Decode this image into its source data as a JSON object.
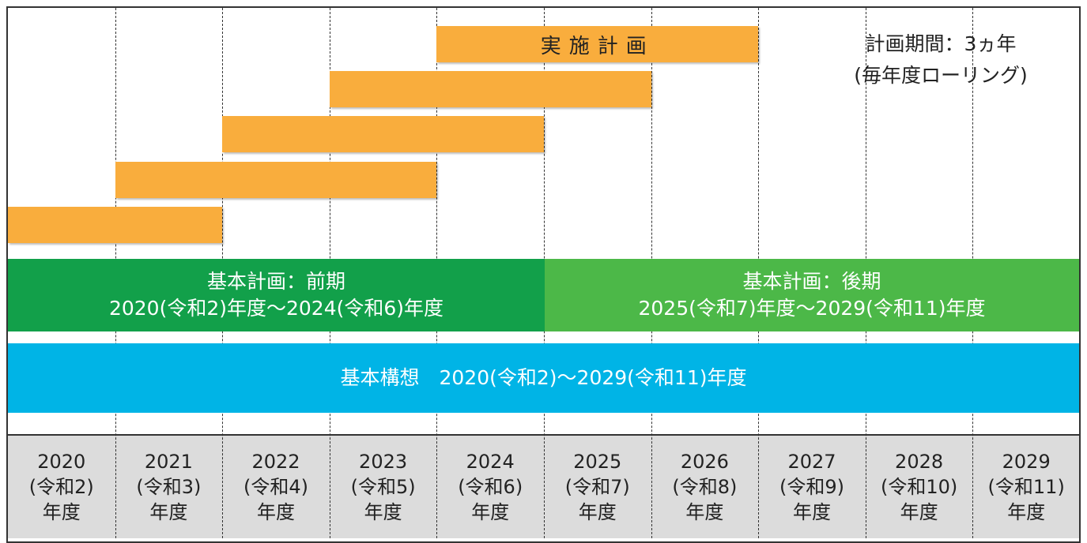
{
  "plan_label": "実施計画",
  "note": [
    "計画期間：3ヵ年",
    "(毎年度ローリング)"
  ],
  "basic_plan": [
    {
      "title": "基本計画：前期",
      "period": "2020(令和2)年度～2024(令和6)年度"
    },
    {
      "title": "基本計画：後期",
      "period": "2025(令和7)年度～2029(令和11)年度"
    }
  ],
  "concept": "基本構想　2020(令和2)～2029(令和11)年度",
  "years": [
    {
      "year": "2020",
      "era": "(令和2)",
      "unit": "年度"
    },
    {
      "year": "2021",
      "era": "(令和3)",
      "unit": "年度"
    },
    {
      "year": "2022",
      "era": "(令和4)",
      "unit": "年度"
    },
    {
      "year": "2023",
      "era": "(令和5)",
      "unit": "年度"
    },
    {
      "year": "2024",
      "era": "(令和6)",
      "unit": "年度"
    },
    {
      "year": "2025",
      "era": "(令和7)",
      "unit": "年度"
    },
    {
      "year": "2026",
      "era": "(令和8)",
      "unit": "年度"
    },
    {
      "year": "2027",
      "era": "(令和9)",
      "unit": "年度"
    },
    {
      "year": "2028",
      "era": "(令和10)",
      "unit": "年度"
    },
    {
      "year": "2029",
      "era": "(令和11)",
      "unit": "年度"
    }
  ]
}
